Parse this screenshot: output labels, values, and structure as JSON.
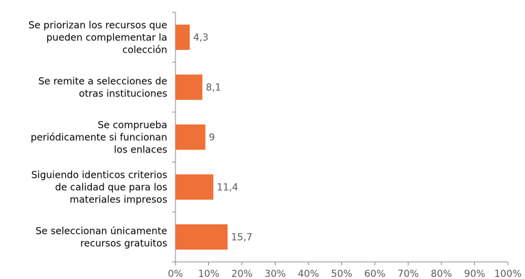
{
  "chart_data": {
    "type": "bar",
    "orientation": "horizontal",
    "categories": [
      [
        "Se priorizan los recursos que",
        "pueden complementar la",
        "colección"
      ],
      [
        "Se remite a selecciones de",
        "otras instituciones"
      ],
      [
        "Se comprueba",
        "periódicamente si funcionan",
        "los enlaces"
      ],
      [
        "Siguiendo identicos criterios",
        "de calidad que para los",
        "materiales impresos"
      ],
      [
        "Se seleccionan únicamente",
        "recursos gratuitos"
      ]
    ],
    "values": [
      4.3,
      8.1,
      9,
      11.4,
      15.7
    ],
    "value_labels": [
      "4,3",
      "8,1",
      "9",
      "11,4",
      "15,7"
    ],
    "xlim": [
      0,
      100
    ],
    "x_ticks": [
      "0%",
      "10%",
      "20%",
      "30%",
      "40%",
      "50%",
      "60%",
      "70%",
      "80%",
      "90%",
      "100%"
    ],
    "grid": false,
    "bar_color": "#F07138",
    "title": "",
    "xlabel": "",
    "ylabel": ""
  }
}
